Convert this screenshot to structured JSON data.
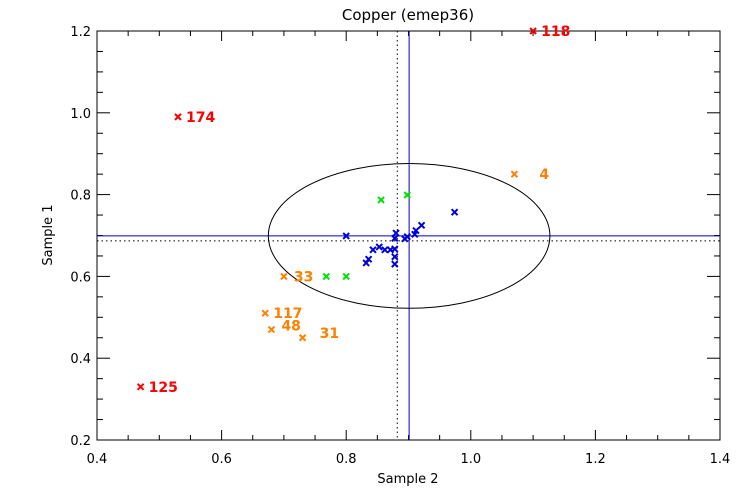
{
  "chart_data": {
    "type": "scatter",
    "title": "Copper (emep36)",
    "xlabel": "Sample 2",
    "ylabel": "Sample 1",
    "xlim": [
      0.4,
      1.4
    ],
    "ylim": [
      0.2,
      1.2
    ],
    "xticks": [
      "0.4",
      "0.6",
      "0.8",
      "1.0",
      "1.2",
      "1.4"
    ],
    "xtick_values": [
      0.4,
      0.6,
      0.8,
      1.0,
      1.2,
      1.4
    ],
    "yticks": [
      "0.2",
      "0.4",
      "0.6",
      "0.8",
      "1.0",
      "1.2"
    ],
    "ytick_values": [
      0.2,
      0.4,
      0.6,
      0.8,
      1.0,
      1.2
    ],
    "grid": false,
    "reference_lines": {
      "median_x": 0.901,
      "median_y": 0.699,
      "dotted_x": 0.882,
      "dotted_y": 0.687,
      "median_color": "#0000cc",
      "dotted_color": "#000000"
    },
    "ellipse": {
      "cx": 0.901,
      "cy": 0.699,
      "rx": 0.226,
      "ry": 0.177,
      "color": "#000000"
    },
    "series": [
      {
        "name": "red",
        "color": "#ff0000",
        "points": [
          {
            "x": 1.1,
            "y": 1.2,
            "label": "118"
          },
          {
            "x": 0.53,
            "y": 0.99,
            "label": "174"
          },
          {
            "x": 0.47,
            "y": 0.33,
            "label": "125"
          }
        ]
      },
      {
        "name": "orange",
        "color": "#ff7f00",
        "points": [
          {
            "x": 1.07,
            "y": 0.85,
            "label": "4"
          },
          {
            "x": 0.7,
            "y": 0.6,
            "label": "33"
          },
          {
            "x": 0.67,
            "y": 0.51,
            "label": "117"
          },
          {
            "x": 0.68,
            "y": 0.47,
            "label": "48"
          },
          {
            "x": 0.73,
            "y": 0.45,
            "label": "31"
          }
        ]
      },
      {
        "name": "green",
        "color": "#00e000",
        "points": [
          {
            "x": 0.856,
            "y": 0.787
          },
          {
            "x": 0.898,
            "y": 0.799
          },
          {
            "x": 0.768,
            "y": 0.6
          },
          {
            "x": 0.8,
            "y": 0.6
          }
        ]
      },
      {
        "name": "blue",
        "color": "#0000dd",
        "points": [
          {
            "x": 0.8,
            "y": 0.699
          },
          {
            "x": 0.974,
            "y": 0.757
          },
          {
            "x": 0.921,
            "y": 0.725
          },
          {
            "x": 0.912,
            "y": 0.712
          },
          {
            "x": 0.91,
            "y": 0.703
          },
          {
            "x": 0.88,
            "y": 0.706
          },
          {
            "x": 0.878,
            "y": 0.693
          },
          {
            "x": 0.898,
            "y": 0.697
          },
          {
            "x": 0.894,
            "y": 0.692
          },
          {
            "x": 0.853,
            "y": 0.672
          },
          {
            "x": 0.843,
            "y": 0.665
          },
          {
            "x": 0.862,
            "y": 0.665
          },
          {
            "x": 0.871,
            "y": 0.665
          },
          {
            "x": 0.878,
            "y": 0.667
          },
          {
            "x": 0.878,
            "y": 0.648
          },
          {
            "x": 0.836,
            "y": 0.642
          },
          {
            "x": 0.832,
            "y": 0.633
          },
          {
            "x": 0.878,
            "y": 0.63
          }
        ]
      }
    ]
  }
}
